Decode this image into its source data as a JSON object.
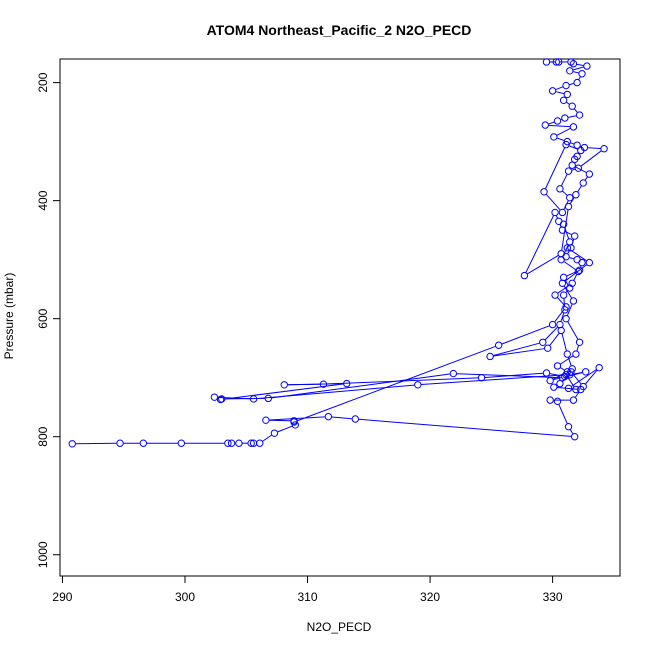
{
  "chart_data": {
    "type": "line",
    "title": "ATOM4 Northeast_Pacific_2 N2O_PECD",
    "xlabel": "N2O_PECD",
    "ylabel": "Pressure (mbar)",
    "xlim": [
      289.8,
      335.5
    ],
    "ylim": [
      1036,
      160
    ],
    "y_reversed": true,
    "x_ticks": [
      290,
      300,
      310,
      320,
      330
    ],
    "y_ticks": [
      200,
      400,
      600,
      800,
      1000
    ],
    "grid": false,
    "legend": "none",
    "line_color": "#0000ff",
    "marker": "open-circle",
    "series": [
      {
        "x": [
          290.8,
          294.7,
          296.6,
          299.7,
          303.5,
          303.8,
          304.4,
          305.4,
          305.6,
          306.1,
          307.3,
          309.0,
          308.9,
          306.6,
          311.7,
          313.9,
          331.8,
          331.3,
          330.4,
          329.8,
          331.7,
          332.3,
          330.1,
          330.6,
          331.4,
          332.7,
          330.8,
          321.9,
          306.8,
          303.0,
          302.4,
          305.6,
          319.0,
          331.1,
          331.9,
          331.3,
          333.8,
          332.5,
          331.5,
          331.6,
          331.2,
          330.7,
          329.6,
          324.9,
          329.2,
          330.6,
          331.0,
          330.9,
          331.4,
          330.9,
          332.2,
          332.4,
          332.0,
          331.1,
          331.5,
          331.8,
          330.8,
          330.5,
          330.2,
          327.7,
          330.7,
          331.3,
          331.9,
          332.5,
          333.0,
          331.6,
          331.8,
          332.0,
          332.3,
          331.1,
          329.3,
          330.8,
          331.4,
          330.6,
          331.3,
          332.1,
          334.2,
          332.6,
          332.0,
          331.2,
          330.1,
          331.7,
          329.4,
          330.4,
          331.0,
          332.2,
          331.6,
          330.9,
          331.2,
          330.0,
          331.1,
          332.0,
          332.4,
          331.4,
          332.8,
          331.7,
          331.5,
          330.3,
          329.5,
          330.5
        ],
        "y": [
          812,
          811,
          811,
          811,
          811,
          811,
          811,
          811,
          811,
          811,
          794,
          780,
          773,
          772,
          766,
          770,
          800,
          783,
          740,
          738,
          738,
          720,
          716,
          710,
          695,
          690,
          700,
          693,
          735,
          736,
          733,
          736,
          712,
          695,
          720,
          718,
          683,
          715,
          690,
          685,
          660,
          620,
          650,
          664,
          640,
          610,
          585,
          560,
          548,
          530,
          518,
          505,
          500,
          495,
          480,
          460,
          450,
          435,
          420,
          527,
          490,
          410,
          390,
          370,
          355,
          340,
          330,
          325,
          315,
          305,
          385,
          420,
          395,
          380,
          350,
          345,
          312,
          310,
          306,
          300,
          292,
          275,
          272,
          265,
          260,
          255,
          240,
          230,
          220,
          214,
          205,
          200,
          185,
          180,
          172,
          168,
          165,
          165,
          165,
          165
        ]
      },
      {
        "x": [
          302.9,
          313.2,
          308.1,
          311.3,
          324.2,
          329.5,
          331.0,
          329.8,
          331.2,
          330.4,
          331.9,
          332.2,
          331.1,
          331.7,
          330.8,
          333.0,
          331.2
        ],
        "y": [
          737,
          710,
          712,
          711,
          700,
          692,
          698,
          705,
          690,
          680,
          660,
          640,
          600,
          570,
          540,
          505,
          480
        ]
      },
      {
        "x": [
          308.9,
          325.6,
          330.0,
          331.1,
          330.2,
          331.6,
          332.1,
          330.7,
          331.4,
          330.9
        ],
        "y": [
          775,
          645,
          610,
          580,
          560,
          540,
          520,
          500,
          470,
          440
        ]
      }
    ]
  }
}
